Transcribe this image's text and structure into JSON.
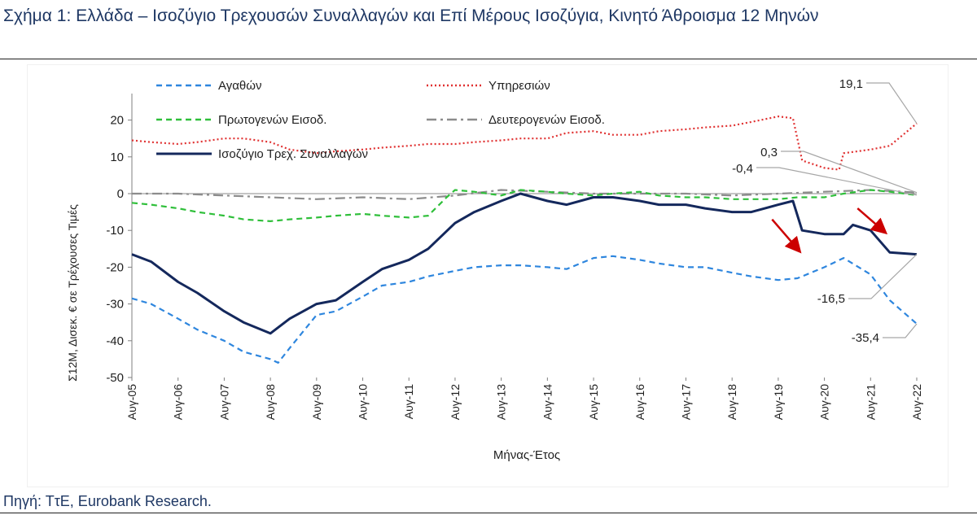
{
  "figure": {
    "title": "Σχήμα 1: Ελλάδα – Ισοζύγιο Τρεχουσών Συναλλαγών και Επί Μέρους Ισοζύγια, Κινητό Άθροισμα 12 Μηνών",
    "source": "Πηγή: ΤτΕ, Eurobank Research."
  },
  "chart_data": {
    "type": "line",
    "xlabel": "Μήνας-Έτος",
    "ylabel": "Σ12Μ, Δισεκ. € σε Τρέχουσες Τιμές",
    "ylim": [
      -50,
      25
    ],
    "yticks": [
      -50,
      -40,
      -30,
      -20,
      -10,
      0,
      10,
      20
    ],
    "x_range": [
      2005.583,
      2022.583
    ],
    "xticks": [
      "Αυγ-05",
      "Αυγ-06",
      "Αυγ-07",
      "Αυγ-08",
      "Αυγ-09",
      "Αυγ-10",
      "Αυγ-11",
      "Αυγ-12",
      "Αυγ-13",
      "Αυγ-14",
      "Αυγ-15",
      "Αυγ-16",
      "Αυγ-17",
      "Αυγ-18",
      "Αυγ-19",
      "Αυγ-20",
      "Αυγ-21",
      "Αυγ-22"
    ],
    "grid": false,
    "legend_position": "top",
    "series": [
      {
        "name": "Αγαθών",
        "color": "#2e86de",
        "style": "dashed",
        "x": [
          2005.583,
          2006.0,
          2006.583,
          2007.0,
          2007.583,
          2008.0,
          2008.583,
          2008.75,
          2009.0,
          2009.583,
          2010.0,
          2010.583,
          2011.0,
          2011.583,
          2012.0,
          2012.583,
          2013.0,
          2013.583,
          2014.0,
          2014.583,
          2015.0,
          2015.583,
          2016.0,
          2016.583,
          2017.0,
          2017.583,
          2018.0,
          2018.583,
          2019.0,
          2019.583,
          2020.0,
          2020.583,
          2021.0,
          2021.583,
          2022.0,
          2022.583
        ],
        "y": [
          -28.5,
          -30,
          -34,
          -37,
          -40,
          -43,
          -45,
          -46,
          -42,
          -33,
          -32,
          -28,
          -25,
          -24,
          -22.5,
          -21,
          -20,
          -19.5,
          -19.5,
          -20,
          -20.5,
          -17.5,
          -17,
          -18,
          -19,
          -20,
          -20,
          -21.5,
          -22.5,
          -23.5,
          -23,
          -20,
          -17.5,
          -22,
          -29,
          -35.4
        ]
      },
      {
        "name": "Υπηρεσιών",
        "color": "#e03131",
        "style": "dotted",
        "x": [
          2005.583,
          2006.0,
          2006.583,
          2007.0,
          2007.583,
          2008.0,
          2008.583,
          2009.0,
          2009.583,
          2010.0,
          2010.583,
          2011.0,
          2011.583,
          2012.0,
          2012.583,
          2013.0,
          2013.583,
          2014.0,
          2014.583,
          2015.0,
          2015.583,
          2016.0,
          2016.583,
          2017.0,
          2017.583,
          2018.0,
          2018.583,
          2019.0,
          2019.583,
          2019.9,
          2020.1,
          2020.583,
          2020.9,
          2021.0,
          2021.583,
          2022.0,
          2022.583
        ],
        "y": [
          14.5,
          14,
          13.5,
          14,
          15,
          15,
          14,
          12,
          11,
          11.5,
          12,
          12.5,
          13,
          13.5,
          13.5,
          14,
          14.5,
          15,
          15,
          16.5,
          17,
          16,
          16,
          17,
          17.5,
          18,
          18.5,
          19.5,
          21,
          20.5,
          9,
          7,
          6.5,
          11,
          12,
          13,
          19.1
        ]
      },
      {
        "name": "Πρωτογενών Εισοδ.",
        "color": "#2fbf3a",
        "style": "dashed",
        "x": [
          2005.583,
          2006.0,
          2006.583,
          2007.0,
          2007.583,
          2008.0,
          2008.583,
          2009.0,
          2009.583,
          2010.0,
          2010.583,
          2011.0,
          2011.583,
          2012.0,
          2012.4,
          2012.583,
          2013.0,
          2013.583,
          2014.0,
          2014.583,
          2015.0,
          2015.583,
          2016.0,
          2016.583,
          2017.0,
          2017.583,
          2018.0,
          2018.583,
          2019.0,
          2019.583,
          2020.0,
          2020.583,
          2021.0,
          2021.583,
          2022.0,
          2022.583
        ],
        "y": [
          -2.5,
          -3,
          -4,
          -5,
          -6,
          -7,
          -7.5,
          -7,
          -6.5,
          -6,
          -5.5,
          -6,
          -6.5,
          -6,
          -1,
          1,
          0.5,
          -0.5,
          1,
          0.5,
          0,
          -0.5,
          0,
          0.5,
          -0.5,
          -1,
          -1,
          -1.5,
          -1.5,
          -1.5,
          -1,
          -1,
          0,
          1,
          0.5,
          -0.4
        ]
      },
      {
        "name": "Δευτερογενών Εισοδ.",
        "color": "#8c8c8c",
        "style": "dashdot",
        "x": [
          2005.583,
          2006.583,
          2007.583,
          2008.583,
          2009.583,
          2010.583,
          2011.583,
          2012.583,
          2013.583,
          2014.583,
          2015.583,
          2016.583,
          2017.583,
          2018.583,
          2019.583,
          2020.583,
          2021.583,
          2022.583
        ],
        "y": [
          0,
          0,
          -0.5,
          -1,
          -1.5,
          -1,
          -1.5,
          -0.5,
          1,
          0.5,
          0,
          0,
          0,
          -0.5,
          0,
          0.5,
          1,
          0.3
        ]
      },
      {
        "name": "Ισοζύγιο Τρεχ. Συναλλαγών",
        "color": "#14285c",
        "style": "solid",
        "x": [
          2005.583,
          2006.0,
          2006.583,
          2007.0,
          2007.583,
          2008.0,
          2008.583,
          2009.0,
          2009.583,
          2010.0,
          2010.583,
          2011.0,
          2011.583,
          2012.0,
          2012.583,
          2013.0,
          2013.583,
          2014.0,
          2014.583,
          2015.0,
          2015.583,
          2016.0,
          2016.583,
          2017.0,
          2017.583,
          2018.0,
          2018.583,
          2019.0,
          2019.583,
          2019.9,
          2020.1,
          2020.583,
          2021.0,
          2021.2,
          2021.583,
          2022.0,
          2022.583
        ],
        "y": [
          -16.5,
          -18.5,
          -24,
          -27,
          -32,
          -35,
          -38,
          -34,
          -30,
          -29,
          -24,
          -20.5,
          -18,
          -15,
          -8,
          -5,
          -2,
          0,
          -2,
          -3,
          -1,
          -1,
          -2,
          -3,
          -3,
          -4,
          -5,
          -5,
          -3,
          -2,
          -10,
          -11,
          -11,
          -8.5,
          -10,
          -16,
          -16.5
        ]
      }
    ],
    "annotations": [
      {
        "label": "19,1",
        "series": 1
      },
      {
        "label": "0,3",
        "series": 3
      },
      {
        "label": "-0,4",
        "series": 2
      },
      {
        "label": "-16,5",
        "series": 4
      },
      {
        "label": "-35,4",
        "series": 0
      }
    ],
    "arrows": [
      {
        "x1": 2019.45,
        "y1": -7,
        "x2": 2020.0,
        "y2": -15
      },
      {
        "x1": 2021.3,
        "y1": -4,
        "x2": 2021.85,
        "y2": -10
      }
    ]
  }
}
